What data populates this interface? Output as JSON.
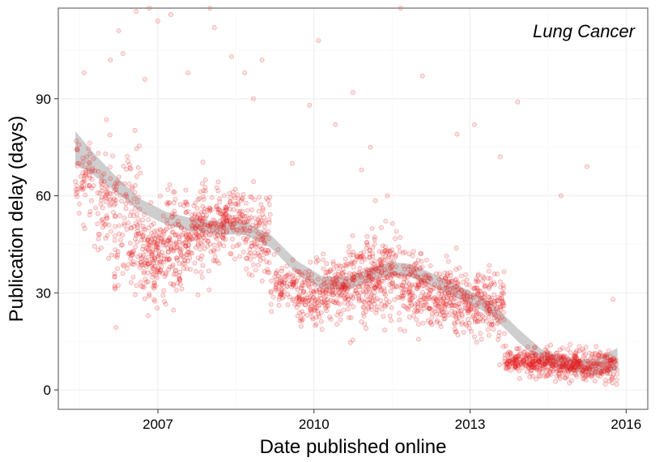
{
  "chart_data": {
    "type": "scatter",
    "title": "Lung Cancer",
    "xlabel": "Date published online",
    "ylabel": "Publication delay (days)",
    "x_ticks": [
      "2007",
      "2010",
      "2013",
      "2016"
    ],
    "y_ticks": [
      "0",
      "30",
      "60",
      "90"
    ],
    "xlim": [
      "2005-02-01",
      "2016-06-01"
    ],
    "ylim": [
      -6,
      118
    ],
    "grid": true,
    "point_color": "#e41a1c",
    "ribbon_color": "#bdbdbd",
    "smooth_trend": {
      "x": [
        "2005-06-01",
        "2005-10-01",
        "2006-03-01",
        "2006-09-01",
        "2007-03-01",
        "2007-09-01",
        "2008-03-01",
        "2008-09-01",
        "2009-03-01",
        "2009-09-01",
        "2010-03-01",
        "2010-09-01",
        "2011-03-01",
        "2011-07-01",
        "2011-11-01",
        "2012-06-01",
        "2013-01-01",
        "2013-06-01",
        "2013-12-01",
        "2014-06-01",
        "2015-01-01",
        "2015-06-01",
        "2015-11-01"
      ],
      "y": [
        75,
        70,
        64,
        57,
        53,
        51,
        50,
        50,
        46,
        38,
        33,
        33,
        36,
        37.5,
        37,
        33,
        28.5,
        25,
        17,
        10,
        7.5,
        7,
        9.5
      ],
      "band_halfwidth": [
        5,
        3.5,
        2.5,
        2,
        2,
        2,
        2,
        2,
        2,
        2,
        2,
        2,
        2,
        2,
        2,
        2,
        2,
        2,
        2,
        2,
        2,
        2.5,
        3.5
      ]
    },
    "clusters": [
      {
        "x_start": "2005-06-01",
        "x_end": "2005-10-01",
        "y_center": 65,
        "y_spread": 8,
        "count": 60
      },
      {
        "x_start": "2005-10-01",
        "x_end": "2006-03-01",
        "y_center": 60,
        "y_spread": 12,
        "count": 70
      },
      {
        "x_start": "2006-03-01",
        "x_end": "2006-09-01",
        "y_center": 50,
        "y_spread": 15,
        "count": 120
      },
      {
        "x_start": "2006-09-01",
        "x_end": "2007-03-01",
        "y_center": 42,
        "y_spread": 9,
        "count": 160
      },
      {
        "x_start": "2007-03-01",
        "x_end": "2007-09-01",
        "y_center": 46,
        "y_spread": 10,
        "count": 150
      },
      {
        "x_start": "2007-09-01",
        "x_end": "2008-03-01",
        "y_center": 50,
        "y_spread": 9,
        "count": 140
      },
      {
        "x_start": "2008-03-01",
        "x_end": "2008-09-01",
        "y_center": 52,
        "y_spread": 7,
        "count": 130
      },
      {
        "x_start": "2008-09-01",
        "x_end": "2009-03-01",
        "y_center": 48,
        "y_spread": 10,
        "count": 110
      },
      {
        "x_start": "2009-03-01",
        "x_end": "2009-09-01",
        "y_center": 33,
        "y_spread": 5,
        "count": 80
      },
      {
        "x_start": "2009-09-01",
        "x_end": "2010-03-01",
        "y_center": 29,
        "y_spread": 7,
        "count": 120
      },
      {
        "x_start": "2010-03-01",
        "x_end": "2010-09-01",
        "y_center": 31,
        "y_spread": 7,
        "count": 140
      },
      {
        "x_start": "2010-09-01",
        "x_end": "2011-03-01",
        "y_center": 34,
        "y_spread": 8,
        "count": 150
      },
      {
        "x_start": "2011-03-01",
        "x_end": "2011-09-01",
        "y_center": 36,
        "y_spread": 9,
        "count": 140
      },
      {
        "x_start": "2011-09-01",
        "x_end": "2012-03-01",
        "y_center": 32,
        "y_spread": 8,
        "count": 130
      },
      {
        "x_start": "2012-03-01",
        "x_end": "2012-09-01",
        "y_center": 29,
        "y_spread": 7,
        "count": 130
      },
      {
        "x_start": "2012-09-01",
        "x_end": "2013-03-01",
        "y_center": 27,
        "y_spread": 7,
        "count": 130
      },
      {
        "x_start": "2013-03-01",
        "x_end": "2013-09-01",
        "y_center": 27,
        "y_spread": 8,
        "count": 120
      },
      {
        "x_start": "2013-09-01",
        "x_end": "2014-03-01",
        "y_center": 9,
        "y_spread": 2.5,
        "count": 120
      },
      {
        "x_start": "2014-03-01",
        "x_end": "2014-09-01",
        "y_center": 8.5,
        "y_spread": 3,
        "count": 150
      },
      {
        "x_start": "2014-09-01",
        "x_end": "2015-03-01",
        "y_center": 8,
        "y_spread": 3,
        "count": 150
      },
      {
        "x_start": "2015-03-01",
        "x_end": "2015-11-01",
        "y_center": 7,
        "y_spread": 3.5,
        "count": 150
      }
    ],
    "outliers": [
      {
        "x": "2005-08-01",
        "y": 98
      },
      {
        "x": "2006-02-01",
        "y": 102
      },
      {
        "x": "2006-04-01",
        "y": 111
      },
      {
        "x": "2006-05-01",
        "y": 104
      },
      {
        "x": "2006-08-01",
        "y": 117
      },
      {
        "x": "2006-10-01",
        "y": 96
      },
      {
        "x": "2006-11-01",
        "y": 118
      },
      {
        "x": "2007-01-01",
        "y": 114
      },
      {
        "x": "2007-04-01",
        "y": 116
      },
      {
        "x": "2007-08-01",
        "y": 98
      },
      {
        "x": "2008-01-01",
        "y": 118
      },
      {
        "x": "2008-02-01",
        "y": 112
      },
      {
        "x": "2008-06-01",
        "y": 103
      },
      {
        "x": "2008-09-01",
        "y": 98
      },
      {
        "x": "2008-11-01",
        "y": 90
      },
      {
        "x": "2009-01-01",
        "y": 102
      },
      {
        "x": "2009-12-01",
        "y": 88
      },
      {
        "x": "2010-02-01",
        "y": 108
      },
      {
        "x": "2010-06-01",
        "y": 82
      },
      {
        "x": "2010-10-01",
        "y": 92
      },
      {
        "x": "2011-02-01",
        "y": 75
      },
      {
        "x": "2011-09-01",
        "y": 118
      },
      {
        "x": "2012-02-01",
        "y": 97
      },
      {
        "x": "2012-10-01",
        "y": 79
      },
      {
        "x": "2013-02-01",
        "y": 82
      },
      {
        "x": "2013-08-01",
        "y": 72
      },
      {
        "x": "2013-12-01",
        "y": 89
      },
      {
        "x": "2014-10-01",
        "y": 60
      },
      {
        "x": "2015-04-01",
        "y": 69
      },
      {
        "x": "2015-10-01",
        "y": 28
      },
      {
        "x": "2011-06-01",
        "y": 60
      },
      {
        "x": "2010-12-01",
        "y": 68
      },
      {
        "x": "2009-08-01",
        "y": 70
      }
    ]
  }
}
